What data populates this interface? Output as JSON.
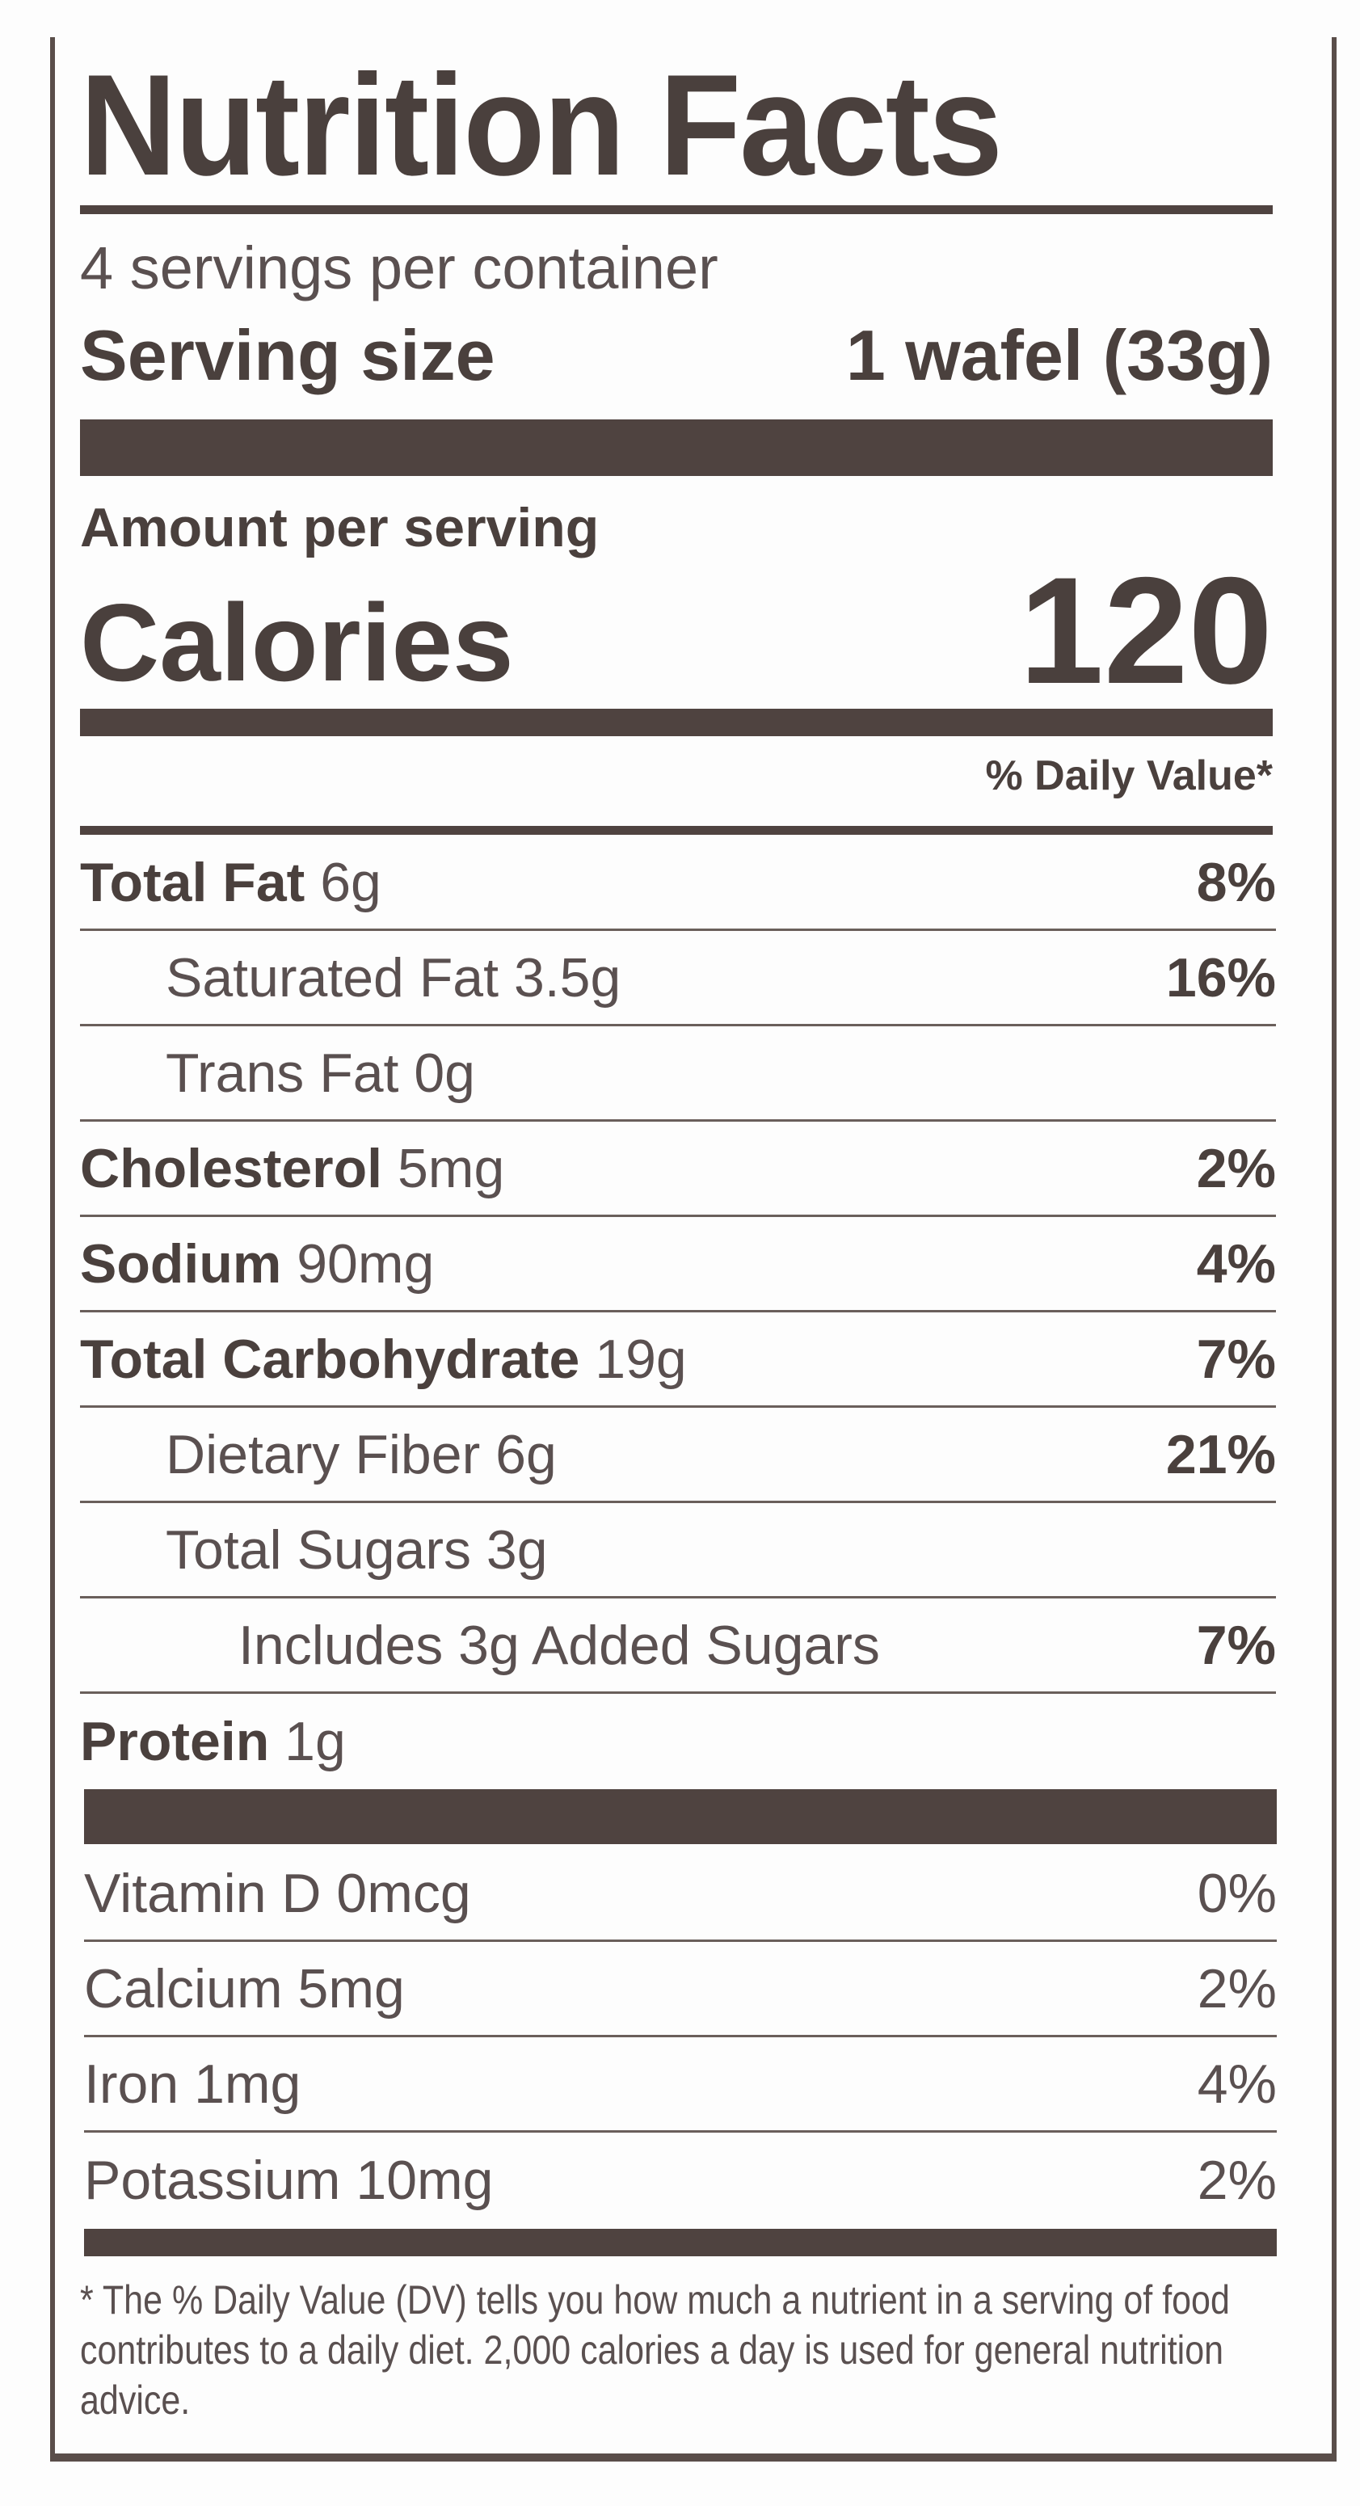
{
  "title": "Nutrition Facts",
  "servings_per_container": "4 servings per container",
  "serving_size": {
    "label": "Serving size",
    "value": "1 wafel (33g)"
  },
  "amount_per_serving": "Amount per serving",
  "calories": {
    "label": "Calories",
    "value": "120"
  },
  "daily_value_header": "% Daily Value*",
  "nutrients": [
    {
      "name": "Total Fat",
      "amount": "6g",
      "dv": "8%",
      "bold": true,
      "indent": 0
    },
    {
      "name": "Saturated Fat",
      "amount": "3.5g",
      "dv": "16%",
      "bold": false,
      "indent": 1
    },
    {
      "name": "Trans Fat",
      "amount": "0g",
      "dv": "",
      "bold": false,
      "indent": 1
    },
    {
      "name": "Cholesterol",
      "amount": "5mg",
      "dv": "2%",
      "bold": true,
      "indent": 0
    },
    {
      "name": "Sodium",
      "amount": "90mg",
      "dv": "4%",
      "bold": true,
      "indent": 0
    },
    {
      "name": "Total Carbohydrate",
      "amount": "19g",
      "dv": "7%",
      "bold": true,
      "indent": 0
    },
    {
      "name": "Dietary Fiber",
      "amount": "6g",
      "dv": "21%",
      "bold": false,
      "indent": 1
    },
    {
      "name": "Total Sugars",
      "amount": "3g",
      "dv": "",
      "bold": false,
      "indent": 1
    },
    {
      "name": "Includes 3g Added Sugars",
      "amount": "",
      "dv": "7%",
      "bold": false,
      "indent": 2
    },
    {
      "name": "Protein",
      "amount": "1g",
      "dv": "",
      "bold": true,
      "indent": 0
    }
  ],
  "vitamins": [
    {
      "name": "Vitamin D",
      "amount": "0mcg",
      "dv": "0%"
    },
    {
      "name": "Calcium",
      "amount": "5mg",
      "dv": "2%"
    },
    {
      "name": "Iron",
      "amount": "1mg",
      "dv": "4%"
    },
    {
      "name": "Potassium",
      "amount": "10mg",
      "dv": "2%"
    }
  ],
  "footnote": "* The % Daily Value (DV) tells you how much a nutrient in a serving of food contributes to a daily diet. 2,000 calories a day is used for general nutrition advice.",
  "colors": {
    "ink": "#4a403d",
    "text": "#5a5050",
    "background": "#fdfdfd"
  }
}
